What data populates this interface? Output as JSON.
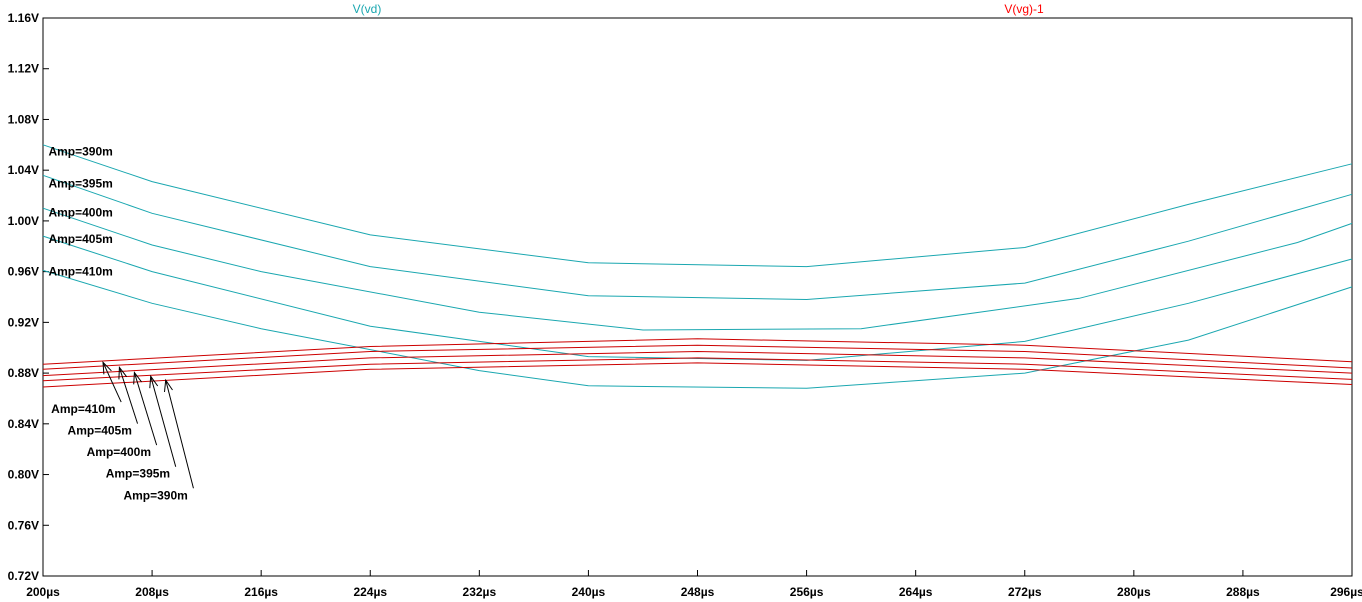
{
  "chart_data": {
    "type": "line",
    "trace_titles": [
      {
        "label": "V(vd)",
        "color": "#1aa7b0"
      },
      {
        "label": "V(vg)-1",
        "color": "#ff0000"
      }
    ],
    "x_ticks": [
      "200µs",
      "208µs",
      "216µs",
      "224µs",
      "232µs",
      "240µs",
      "248µs",
      "256µs",
      "264µs",
      "272µs",
      "280µs",
      "288µs",
      "296µs"
    ],
    "x_tick_values": [
      200,
      208,
      216,
      224,
      232,
      240,
      248,
      256,
      264,
      272,
      280,
      288,
      296
    ],
    "y_ticks": [
      "0.72V",
      "0.76V",
      "0.80V",
      "0.84V",
      "0.88V",
      "0.92V",
      "0.96V",
      "1.00V",
      "1.04V",
      "1.08V",
      "1.12V",
      "1.16V"
    ],
    "y_tick_values": [
      0.72,
      0.76,
      0.8,
      0.84,
      0.88,
      0.92,
      0.96,
      1.0,
      1.04,
      1.08,
      1.12,
      1.16
    ],
    "xlim": [
      200,
      296
    ],
    "ylim": [
      0.72,
      1.16
    ],
    "grid": false,
    "series": [
      {
        "trace": "V(vd)",
        "color": "#1aa7b0",
        "x": [
          200,
          208,
          224,
          240,
          256,
          272,
          284,
          296
        ],
        "y": [
          1.06,
          1.031,
          0.989,
          0.967,
          0.964,
          0.979,
          1.013,
          1.045
        ]
      },
      {
        "trace": "V(vd)",
        "color": "#1aa7b0",
        "x": [
          200,
          208,
          224,
          240,
          256,
          272,
          284,
          296
        ],
        "y": [
          1.036,
          1.006,
          0.964,
          0.941,
          0.938,
          0.951,
          0.984,
          1.021
        ]
      },
      {
        "trace": "V(vd)",
        "color": "#1aa7b0",
        "x": [
          200,
          208,
          216,
          232,
          244,
          260,
          276,
          292,
          296
        ],
        "y": [
          1.01,
          0.981,
          0.96,
          0.928,
          0.914,
          0.915,
          0.939,
          0.983,
          0.998
        ]
      },
      {
        "trace": "V(vd)",
        "color": "#1aa7b0",
        "x": [
          200,
          208,
          224,
          240,
          256,
          272,
          284,
          296
        ],
        "y": [
          0.988,
          0.96,
          0.917,
          0.893,
          0.89,
          0.905,
          0.935,
          0.97
        ]
      },
      {
        "trace": "V(vd)",
        "color": "#1aa7b0",
        "x": [
          200,
          208,
          216,
          232,
          240,
          256,
          272,
          284,
          296
        ],
        "y": [
          0.961,
          0.935,
          0.915,
          0.882,
          0.87,
          0.868,
          0.88,
          0.906,
          0.948
        ]
      },
      {
        "trace": "V(vg)-1",
        "color": "#cc0000",
        "x": [
          200,
          224,
          248,
          272,
          296
        ],
        "y": [
          0.887,
          0.901,
          0.907,
          0.902,
          0.889
        ]
      },
      {
        "trace": "V(vg)-1",
        "color": "#cc0000",
        "x": [
          200,
          224,
          248,
          272,
          296
        ],
        "y": [
          0.883,
          0.897,
          0.902,
          0.897,
          0.884
        ]
      },
      {
        "trace": "V(vg)-1",
        "color": "#cc0000",
        "x": [
          200,
          224,
          248,
          272,
          296
        ],
        "y": [
          0.878,
          0.892,
          0.897,
          0.892,
          0.88
        ]
      },
      {
        "trace": "V(vg)-1",
        "color": "#cc0000",
        "x": [
          200,
          224,
          248,
          272,
          296
        ],
        "y": [
          0.874,
          0.887,
          0.892,
          0.887,
          0.875
        ]
      },
      {
        "trace": "V(vg)-1",
        "color": "#cc0000",
        "x": [
          200,
          224,
          248,
          272,
          296
        ],
        "y": [
          0.869,
          0.883,
          0.888,
          0.883,
          0.871
        ]
      }
    ],
    "annotations_vd": [
      {
        "text": "Amp=390m",
        "x": 200.4,
        "y": 1.0515
      },
      {
        "text": "Amp=395m",
        "x": 200.4,
        "y": 1.0265
      },
      {
        "text": "Amp=400m",
        "x": 200.4,
        "y": 1.0035
      },
      {
        "text": "Amp=405m",
        "x": 200.4,
        "y": 0.9825
      },
      {
        "text": "Amp=410m",
        "x": 200.4,
        "y": 0.957
      }
    ],
    "annotations_vg": [
      {
        "text": "Amp=410m",
        "x": 200.6,
        "y": 0.8485,
        "tip_x": 204.4,
        "tip_y": 0.8885
      },
      {
        "text": "Amp=405m",
        "x": 201.8,
        "y": 0.8315,
        "tip_x": 205.6,
        "tip_y": 0.8845
      },
      {
        "text": "Amp=400m",
        "x": 203.2,
        "y": 0.8145,
        "tip_x": 206.7,
        "tip_y": 0.8805
      },
      {
        "text": "Amp=395m",
        "x": 204.6,
        "y": 0.7975,
        "tip_x": 207.9,
        "tip_y": 0.8775
      },
      {
        "text": "Amp=390m",
        "x": 205.9,
        "y": 0.7805,
        "tip_x": 209.0,
        "tip_y": 0.8745
      }
    ]
  }
}
